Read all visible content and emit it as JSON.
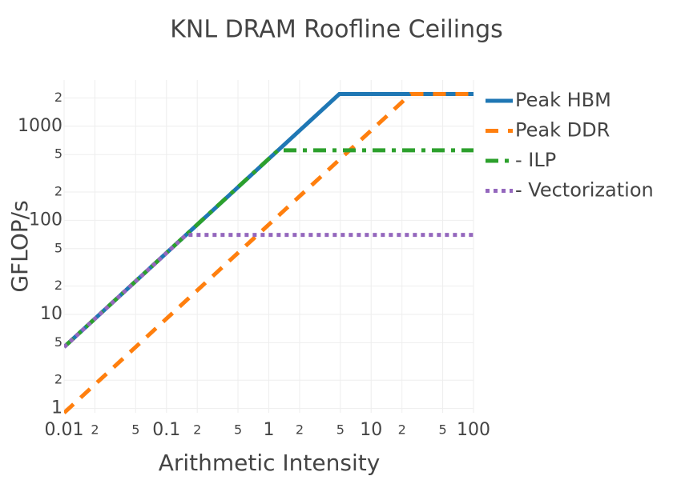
{
  "chart_data": {
    "type": "line",
    "title": "KNL DRAM Roofline Ceilings",
    "x_label": "Arithmetic Intensity",
    "y_label": "GFLOP/s",
    "log_x": true,
    "log_y": true,
    "grid": true,
    "legend": "right",
    "xlim": [
      0.01,
      100
    ],
    "ylim": [
      0.9,
      3100
    ],
    "xticks": [
      0.01,
      {
        "value": 0.02,
        "label": "2"
      },
      {
        "value": 0.05,
        "label": "5"
      },
      0.1,
      {
        "value": 0.2,
        "label": "2"
      },
      {
        "value": 0.5,
        "label": "5"
      },
      1,
      2,
      5,
      10,
      {
        "value": 20,
        "label": "2"
      },
      {
        "value": 50,
        "label": "5"
      },
      100
    ],
    "yticks": [
      1,
      2,
      5,
      10,
      {
        "value": 20,
        "label": "2"
      },
      {
        "value": 50,
        "label": "5"
      },
      100,
      {
        "value": 200,
        "label": "2"
      },
      {
        "value": 500,
        "label": "5"
      },
      1000,
      {
        "value": 2000,
        "label": "2"
      }
    ],
    "series": [
      {
        "name": "Peak HBM",
        "color": "#1f77b4",
        "dash": "solid",
        "x": [
          0.01,
          4.89,
          100
        ],
        "values": [
          4.5,
          2200,
          2200
        ]
      },
      {
        "name": "Peak DDR",
        "color": "#ff7f0e",
        "dash": "dash",
        "x": [
          0.01,
          24.4,
          100
        ],
        "values": [
          0.9,
          2200,
          2200
        ]
      },
      {
        "name": "- ILP",
        "color": "#2ca02c",
        "dash": "dashdot",
        "x": [
          0.01,
          1.23,
          100
        ],
        "values": [
          4.5,
          555,
          555
        ]
      },
      {
        "name": "- Vectorization",
        "color": "#9467bd",
        "dash": "dot",
        "x": [
          0.01,
          0.156,
          100
        ],
        "values": [
          4.5,
          70,
          70
        ]
      }
    ]
  }
}
